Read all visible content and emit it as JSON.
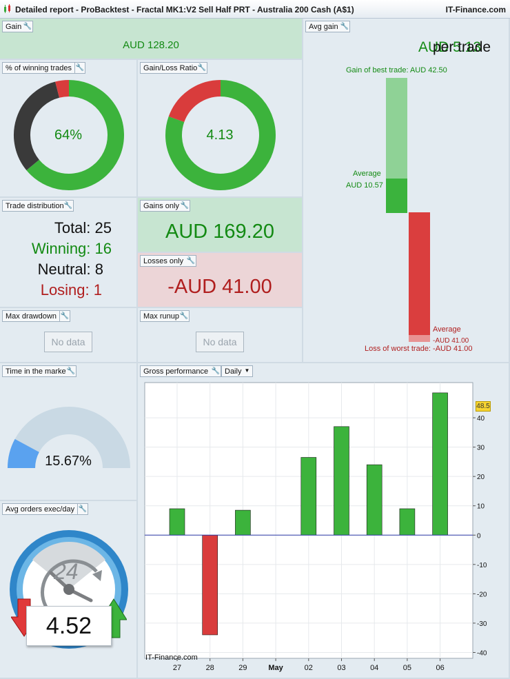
{
  "window": {
    "title": "Detailed report - ProBacktest - Fractal MK1:V2 Sell Half PRT - Australia 200 Cash (A$1)",
    "brand": "IT-Finance.com"
  },
  "gain": {
    "label": "Gain",
    "value": "AUD 128.20"
  },
  "winning_pct": {
    "label": "% of winning trades",
    "value": "64%",
    "winning": 16,
    "neutral": 8,
    "losing": 1
  },
  "gain_loss_ratio": {
    "label": "Gain/Loss Ratio",
    "value": "4.13",
    "gain_share": 0.805
  },
  "avg_gain": {
    "label": "Avg gain",
    "value": "AUD 5.13",
    "suffix": "per trade",
    "best": "Gain of best trade: AUD 42.50",
    "avg_gain_label": "Average",
    "avg_gain_value": "AUD 10.57",
    "avg_loss_label": "Average",
    "avg_loss_value": "-AUD 41.00",
    "worst": "Loss of worst trade: -AUD 41.00"
  },
  "trade_distribution": {
    "label": "Trade distribution",
    "total": "Total: 25",
    "winning": "Winning: 16",
    "neutral": "Neutral: 8",
    "losing": "Losing: 1"
  },
  "gains_only": {
    "label": "Gains only",
    "value": "AUD 169.20"
  },
  "losses_only": {
    "label": "Losses only",
    "value": "-AUD 41.00"
  },
  "max_drawdown": {
    "label": "Max drawdown",
    "value": "No data"
  },
  "max_runup": {
    "label": "Max runup",
    "value": "No data"
  },
  "time_in_market": {
    "label": "Time in the market",
    "value": "15.67%",
    "fraction": 0.1567
  },
  "avg_orders": {
    "label": "Avg orders exec/day",
    "dial": "24",
    "value": "4.52"
  },
  "gross_performance": {
    "label": "Gross performance",
    "period": "Daily",
    "watermark": "IT-Finance.com",
    "last_value": "48.5"
  },
  "chart_data": {
    "type": "bar",
    "categories": [
      "27",
      "28",
      "29",
      "May",
      "02",
      "03",
      "04",
      "05",
      "06"
    ],
    "values": [
      9,
      -34,
      8.5,
      null,
      26.5,
      37,
      24,
      9,
      48.5
    ],
    "ylim": [
      -42,
      52
    ],
    "yticks": [
      40,
      30,
      20,
      10,
      0,
      -10,
      -20,
      -30,
      -40
    ],
    "colors": {
      "positive": "#3cb33c",
      "negative": "#d93c3c",
      "zero_line": "#2c3aa8"
    }
  }
}
